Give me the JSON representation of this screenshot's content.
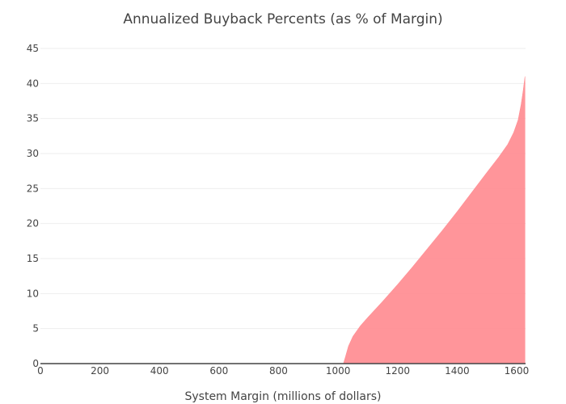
{
  "chart_data": {
    "type": "area",
    "title": "Annualized Buyback Percents (as % of Margin)",
    "xlabel": "System Margin (millions of dollars)",
    "ylabel": "",
    "xlim": [
      0,
      1630
    ],
    "ylim": [
      0,
      45
    ],
    "x_ticks": [
      0,
      200,
      400,
      600,
      800,
      1000,
      1200,
      1400,
      1600
    ],
    "y_ticks": [
      0,
      5,
      10,
      15,
      20,
      25,
      30,
      35,
      40,
      45
    ],
    "grid": true,
    "series": [
      {
        "color": "#ff8a8f",
        "x": [
          0,
          1000,
          1018,
          1025,
          1035,
          1050,
          1075,
          1100,
          1150,
          1200,
          1250,
          1300,
          1350,
          1400,
          1450,
          1500,
          1540,
          1570,
          1590,
          1605,
          1615,
          1622,
          1628
        ],
        "y": [
          0,
          0,
          0,
          1,
          2.5,
          3.9,
          5.4,
          6.6,
          8.9,
          11.3,
          13.8,
          16.4,
          19.0,
          21.7,
          24.5,
          27.3,
          29.5,
          31.3,
          33.0,
          34.8,
          37.0,
          39.0,
          41.0
        ]
      }
    ]
  }
}
